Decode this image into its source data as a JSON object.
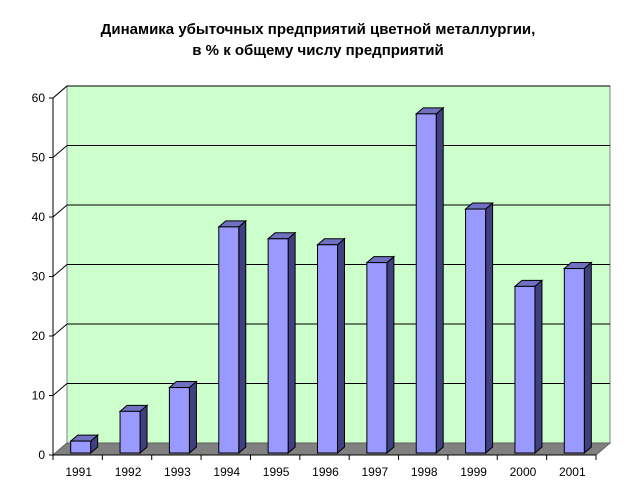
{
  "chart_data": {
    "type": "bar",
    "title_line1": "Динамика убыточных предприятий цветной металлургии,",
    "title_line2": "в % к общему числу предприятий",
    "categories": [
      "1991",
      "1992",
      "1993",
      "1994",
      "1995",
      "1996",
      "1997",
      "1998",
      "1999",
      "2000",
      "2001"
    ],
    "values": [
      2,
      7,
      11,
      38,
      36,
      35,
      32,
      57,
      41,
      28,
      31
    ],
    "ylim": [
      0,
      60
    ],
    "yticks": [
      0,
      10,
      20,
      30,
      40,
      50,
      60
    ],
    "grid": true,
    "colors": {
      "bar_front": "#9999ff",
      "bar_side": "#404080",
      "bar_top": "#7070c0",
      "plot_back": "#ccffcc",
      "floor": "#808080",
      "side_wall": "#ffffff"
    }
  }
}
